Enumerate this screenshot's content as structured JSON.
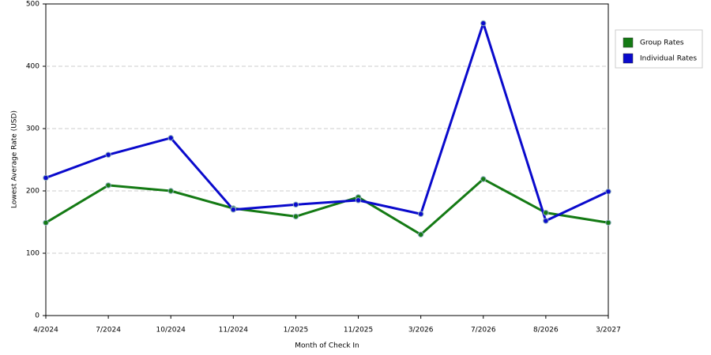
{
  "chart_data": {
    "type": "line",
    "x_label": "Month of Check In",
    "y_label": "Lowest Average Rate (USD)",
    "categories": [
      "4/2024",
      "7/2024",
      "10/2024",
      "11/2024",
      "1/2025",
      "11/2025",
      "3/2026",
      "7/2026",
      "8/2026",
      "3/2027"
    ],
    "series": [
      {
        "name": "Group Rates",
        "color": "#147a14",
        "values": [
          149,
          209,
          200,
          172,
          159,
          190,
          130,
          219,
          165,
          149
        ]
      },
      {
        "name": "Individual Rates",
        "color": "#0a0acc",
        "values": [
          221,
          258,
          285,
          170,
          178,
          185,
          163,
          469,
          152,
          199
        ]
      }
    ],
    "ylim": [
      0,
      500
    ],
    "yticks": [
      0,
      100,
      200,
      300,
      400,
      500
    ],
    "grid": true
  }
}
